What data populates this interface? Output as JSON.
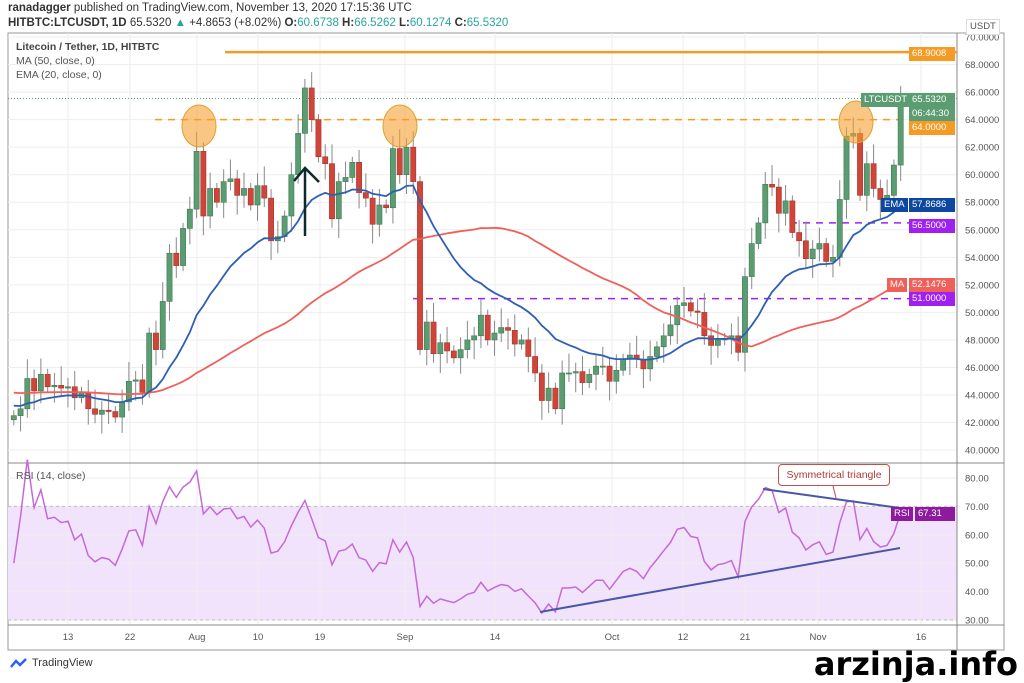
{
  "header": {
    "author": "ranadagger",
    "published": "published on TradingView.com, November 13, 2020 17:15:36 UTC",
    "symbol": "HITBTC:LTCUSDT, 1D",
    "last": "65.5320",
    "change": "+4.8653 (+8.02%)",
    "o_label": "O:",
    "o": "60.6738",
    "h_label": "H:",
    "h": "66.5262",
    "l_label": "L:",
    "l": "60.1274",
    "c_label": "C:",
    "c": "65.5320"
  },
  "legend": {
    "title": "Litecoin / Tether, 1D, HITBTC",
    "ma": "MA (50, close, 0)",
    "ema": "EMA (20, close, 0)",
    "rsi": "RSI (14, close)"
  },
  "price_axis": {
    "currency": "USDT",
    "ticks": [
      "70.0000",
      "68.0000",
      "66.0000",
      "64.0000",
      "62.0000",
      "60.0000",
      "58.0000",
      "56.0000",
      "54.0000",
      "52.0000",
      "50.0000",
      "48.0000",
      "46.0000",
      "44.0000",
      "42.0000",
      "40.0000"
    ]
  },
  "rsi_axis": {
    "ticks": [
      "80.00",
      "70.00",
      "60.00",
      "50.00",
      "40.00",
      "30.00"
    ]
  },
  "date_axis": {
    "ticks": [
      "13",
      "22",
      "Aug",
      "10",
      "19",
      "Sep",
      "14",
      "Oct",
      "12",
      "21",
      "Nov",
      "16"
    ]
  },
  "tags": {
    "resistance_top": "68.9008",
    "symbol": "LTCUSDT",
    "last": "65.5320",
    "countdown": "06:44:30",
    "level_64": "64.0000",
    "ema_label": "EMA",
    "ema": "57.8686",
    "level_56": "56.5000",
    "ma_label": "MA",
    "ma": "52.1476",
    "level_51": "51.0000",
    "rsi_label": "RSI",
    "rsi": "67.31"
  },
  "annotation": {
    "triangle": "Symmetrical triangle"
  },
  "footer": {
    "brand": "TradingView",
    "watermark": "arzinja.info"
  },
  "colors": {
    "up": "#5b9c72",
    "down": "#d0453a",
    "ema": "#2f5fb3",
    "ma": "#f0605a",
    "orange": "#f59a23",
    "purple": "#a020f0",
    "rsi": "#c46ad8"
  },
  "chart_data": {
    "type": "candlestick",
    "symbol": "LTCUSDT",
    "interval": "1D",
    "first_date": "2020-07-05",
    "last_date": "2020-11-13",
    "close": [
      42.5,
      43.0,
      45.2,
      44.3,
      45.5,
      44.6,
      44.7,
      44.5,
      44.6,
      43.8,
      44.2,
      43.0,
      42.6,
      42.9,
      42.8,
      42.4,
      43.5,
      45.0,
      45.1,
      44.2,
      48.5,
      47.3,
      50.8,
      54.3,
      53.4,
      56.1,
      57.5,
      61.7,
      57.0,
      59.0,
      58.0,
      59.5,
      59.7,
      58.5,
      59.0,
      57.8,
      59.2,
      58.3,
      55.2,
      55.5,
      57.0,
      60.0,
      63.0,
      66.3,
      64.0,
      61.3,
      60.8,
      56.8,
      59.5,
      59.8,
      60.9,
      58.7,
      58.3,
      56.4,
      57.8,
      57.6,
      61.9,
      60.0,
      62.0,
      59.5,
      47.3,
      49.3,
      47.0,
      47.8,
      47.2,
      46.7,
      47.3,
      48.0,
      48.3,
      49.8,
      48.0,
      48.5,
      48.9,
      48.7,
      47.7,
      48.0,
      46.8,
      45.6,
      43.6,
      44.5,
      43.0,
      45.6,
      45.6,
      45.7,
      44.9,
      45.5,
      46.1,
      46.1,
      45.0,
      45.8,
      46.6,
      46.9,
      46.6,
      45.9,
      46.8,
      47.5,
      48.3,
      49.1,
      50.5,
      50.7,
      50.1,
      50.0,
      48.3,
      47.6,
      48.0,
      48.1,
      48.3,
      47.1,
      52.6,
      55.0,
      56.5,
      59.3,
      59.1,
      57.2,
      58.1,
      55.8,
      55.2,
      53.9,
      54.6,
      55.0,
      53.7,
      54.0,
      58.2,
      62.8,
      63.0,
      58.5,
      60.8,
      59.0,
      58.2,
      58.5,
      60.7,
      65.532
    ],
    "indicators": [
      "MA 50",
      "EMA 20",
      "RSI 14"
    ],
    "horizontal_levels": [
      68.9008,
      64.0,
      56.5,
      51.0
    ],
    "y_range": [
      39,
      70.5
    ],
    "rsi_range": [
      26,
      86
    ],
    "rsi_band": [
      30,
      70
    ]
  }
}
